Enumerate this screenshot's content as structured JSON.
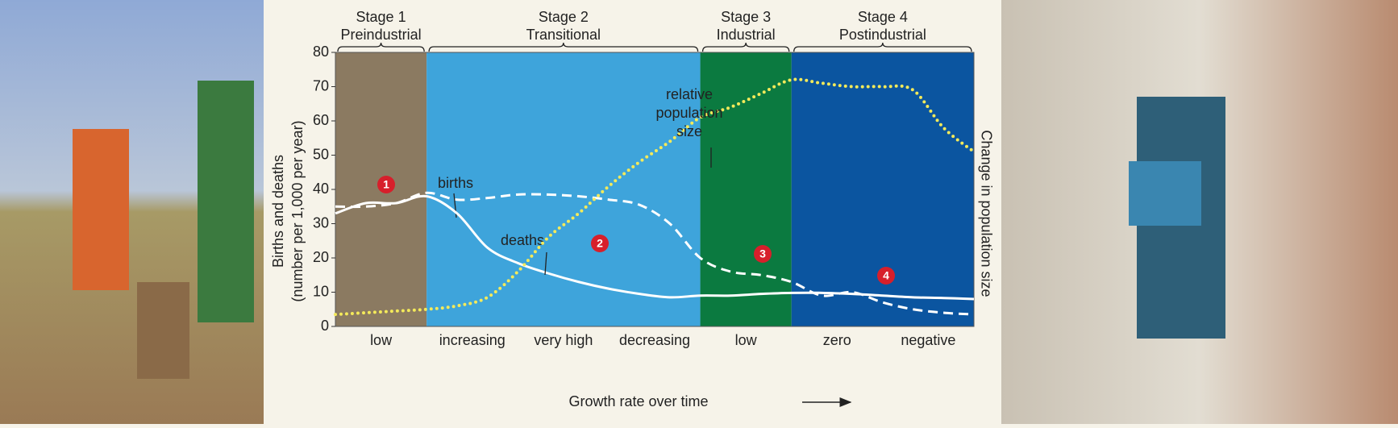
{
  "chart_data": {
    "type": "line",
    "x_label": "Growth rate over time",
    "y_label": [
      "Births and deaths",
      "(number per 1,000 per year)"
    ],
    "y2_label": "Change in population size",
    "ylim": [
      0,
      80
    ],
    "yticks": [
      0,
      10,
      20,
      30,
      40,
      50,
      60,
      70,
      80
    ],
    "stages": [
      {
        "name": "Stage 1",
        "label": "Preindustrial",
        "color": "#8b7a61",
        "marker": "1",
        "categories": [
          "low"
        ]
      },
      {
        "name": "Stage 2",
        "label": "Transitional",
        "color": "#3ea4db",
        "marker": "2",
        "categories": [
          "increasing",
          "very high",
          "decreasing"
        ]
      },
      {
        "name": "Stage 3",
        "label": "Industrial",
        "color": "#0b7a40",
        "marker": "3",
        "categories": [
          "low"
        ]
      },
      {
        "name": "Stage 4",
        "label": "Postindustrial",
        "color": "#0b55a0",
        "marker": "4",
        "categories": [
          "zero",
          "negative"
        ]
      }
    ],
    "series": [
      {
        "name": "births",
        "color": "#ffffff",
        "style": "dashed",
        "values": [
          35,
          35,
          36,
          39,
          37,
          37.5,
          38.5,
          38.5,
          38,
          37,
          35.5,
          30,
          20,
          16,
          15,
          13,
          9,
          10,
          7,
          5,
          4,
          3.5
        ]
      },
      {
        "name": "deaths",
        "color": "#ffffff",
        "style": "solid",
        "values": [
          33,
          36,
          36,
          38,
          33,
          23,
          18.5,
          15.5,
          13,
          11,
          9.5,
          8.5,
          9,
          9,
          9.5,
          9.8,
          9.8,
          9.5,
          9,
          8.5,
          8.3,
          8
        ]
      },
      {
        "name": [
          "relative",
          "population",
          "size"
        ],
        "color": "#f4ea5a",
        "style": "dotted",
        "values": [
          3.5,
          4,
          4.5,
          5,
          6,
          8.5,
          16,
          26,
          33,
          41,
          48,
          54,
          61,
          64,
          68,
          72,
          71,
          70,
          70,
          69,
          58,
          51
        ]
      }
    ]
  }
}
